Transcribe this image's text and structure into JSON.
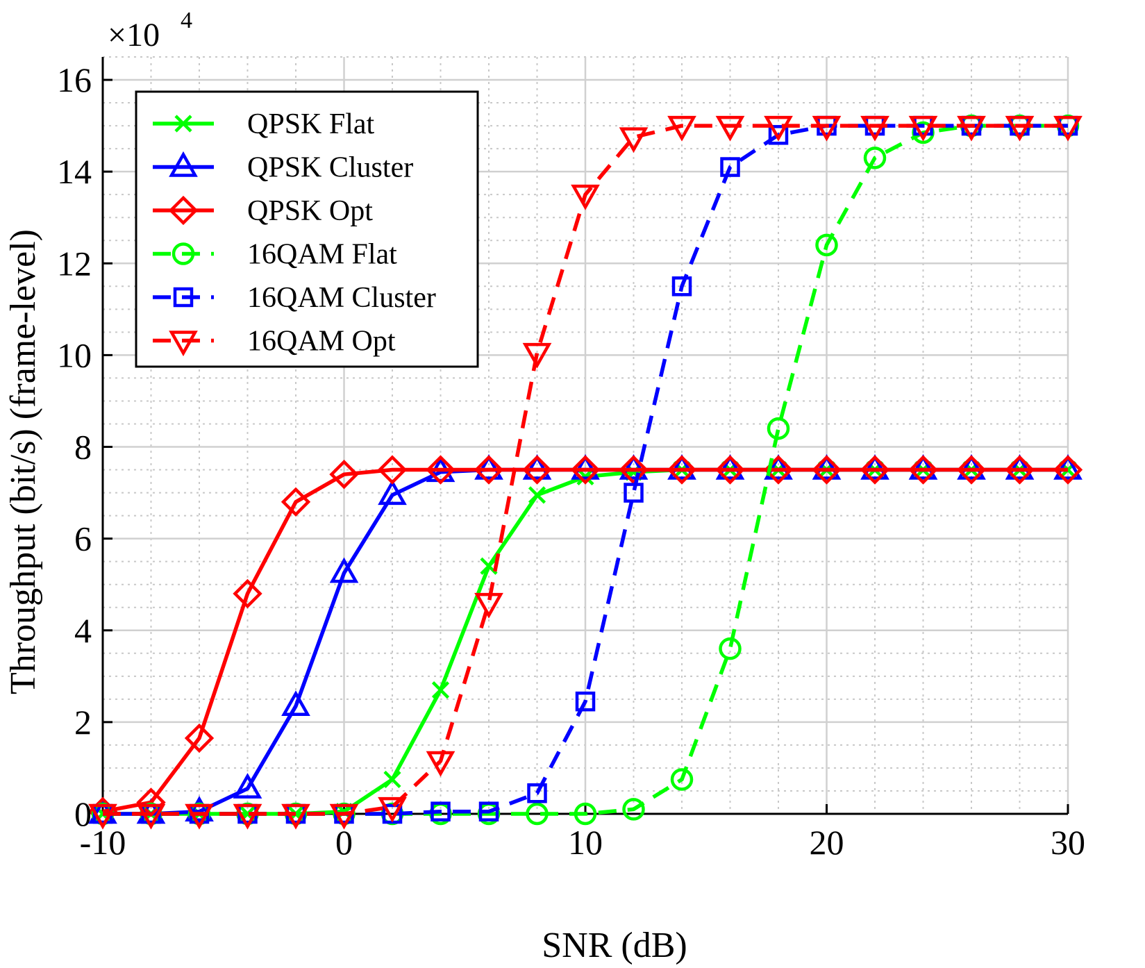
{
  "chart_data": {
    "type": "line",
    "title": "",
    "xlabel": "SNR (dB)",
    "ylabel": "Throughput (bit/s) (frame-level)",
    "y_exponent_label": "×10",
    "y_exponent_power": "4",
    "xlim": [
      -10,
      30
    ],
    "ylim": [
      0,
      16.5
    ],
    "x_ticks": [
      -10,
      0,
      10,
      20,
      30
    ],
    "x_tick_labels": [
      "-10",
      "0",
      "10",
      "20",
      "30"
    ],
    "y_ticks": [
      0,
      2,
      4,
      6,
      8,
      10,
      12,
      14,
      16
    ],
    "y_tick_labels": [
      "0",
      "2",
      "4",
      "6",
      "8",
      "10",
      "12",
      "14",
      "16"
    ],
    "grid": true,
    "minor_grid": true,
    "legend_position": "top-left",
    "x": [
      -10,
      -8,
      -6,
      -4,
      -2,
      0,
      2,
      4,
      6,
      8,
      10,
      12,
      14,
      16,
      18,
      20,
      22,
      24,
      26,
      28,
      30
    ],
    "series": [
      {
        "name": "QPSK Flat",
        "color": "#00ff00",
        "dash": "solid",
        "marker": "x",
        "values": [
          0,
          0,
          0,
          0,
          0,
          0.05,
          0.75,
          2.7,
          5.4,
          6.95,
          7.35,
          7.45,
          7.5,
          7.5,
          7.5,
          7.5,
          7.5,
          7.5,
          7.5,
          7.5,
          7.5
        ]
      },
      {
        "name": "QPSK Cluster",
        "color": "#0000ff",
        "dash": "solid",
        "marker": "triangle-up",
        "values": [
          0,
          0,
          0.05,
          0.55,
          2.35,
          5.25,
          6.95,
          7.45,
          7.5,
          7.5,
          7.5,
          7.5,
          7.5,
          7.5,
          7.5,
          7.5,
          7.5,
          7.5,
          7.5,
          7.5,
          7.5
        ]
      },
      {
        "name": "QPSK Opt",
        "color": "#ff0000",
        "dash": "solid",
        "marker": "diamond",
        "values": [
          0.05,
          0.25,
          1.65,
          4.8,
          6.8,
          7.4,
          7.5,
          7.5,
          7.5,
          7.5,
          7.5,
          7.5,
          7.5,
          7.5,
          7.5,
          7.5,
          7.5,
          7.5,
          7.5,
          7.5,
          7.5
        ]
      },
      {
        "name": "16QAM Flat",
        "color": "#00ff00",
        "dash": "dashed",
        "marker": "circle",
        "values": [
          0,
          0,
          0,
          0,
          0,
          0,
          0,
          0,
          0,
          0,
          0,
          0.1,
          0.75,
          3.6,
          8.4,
          12.4,
          14.3,
          14.85,
          15.0,
          15.0,
          15.0
        ]
      },
      {
        "name": "16QAM Cluster",
        "color": "#0000ff",
        "dash": "dashed",
        "marker": "square",
        "values": [
          0,
          0,
          0,
          0,
          0,
          0,
          0,
          0.05,
          0.05,
          0.45,
          2.45,
          7.0,
          11.5,
          14.1,
          14.8,
          15.0,
          15.0,
          15.0,
          15.0,
          15.0,
          15.0
        ]
      },
      {
        "name": "16QAM Opt",
        "color": "#ff0000",
        "dash": "dashed",
        "marker": "triangle-down",
        "values": [
          0,
          0,
          0,
          0,
          0,
          0,
          0.15,
          1.15,
          4.6,
          10.05,
          13.5,
          14.75,
          15.0,
          15.0,
          15.0,
          15.0,
          15.0,
          15.0,
          15.0,
          15.0,
          15.0
        ]
      }
    ]
  }
}
